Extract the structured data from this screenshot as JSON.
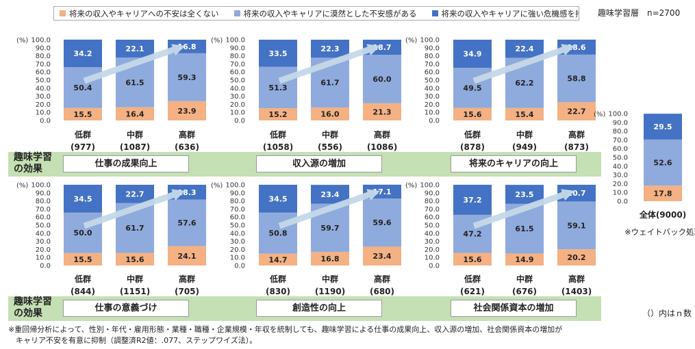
{
  "legend": {
    "items": [
      {
        "label": "将来の収入やキャリアへの不安は全くない",
        "color": "#f4b183"
      },
      {
        "label": "将来の収入やキャリアに漠然とした不安感がある",
        "color": "#8faadc"
      },
      {
        "label": "将来の収入やキャリアに強い危機感を持っている",
        "color": "#4472c4"
      }
    ]
  },
  "sample_label": "趣味学習層　n=2700",
  "band_label": [
    "趣味学習",
    "の効果"
  ],
  "n_note": "（）内はｎ数",
  "weight_note": "※ウェイトバック処理",
  "footnote": [
    "※重回帰分析によって、性別・年代・雇用形態・業種・職種・企業規模・年収を統制しても、趣味学習による仕事の成果向上、収入源の増加、社会関係資本の増加が",
    "　キャリア不安を有意に抑制（調整済R2値：.077、ステップワイズ法）。"
  ],
  "chart_data": [
    {
      "type": "bar",
      "stacked": true,
      "title": "仕事の成果向上",
      "ylabel": "(%)",
      "ylim": [
        0,
        100
      ],
      "yticks": [
        "100.0",
        "90.0",
        "80.0",
        "70.0",
        "60.0",
        "50.0",
        "40.0",
        "30.0",
        "20.0",
        "10.0",
        "0.0"
      ],
      "categories": [
        "低群",
        "中群",
        "高群"
      ],
      "n": [
        "(977)",
        "(1087)",
        "(636)"
      ],
      "series": [
        {
          "name": "将来の収入やキャリアへの不安は全くない",
          "values": [
            15.5,
            16.4,
            23.9
          ]
        },
        {
          "name": "将来の収入やキャリアに漠然とした不安感がある",
          "values": [
            50.4,
            61.5,
            59.3
          ]
        },
        {
          "name": "将来の収入やキャリアに強い危機感を持っている",
          "values": [
            34.2,
            22.1,
            16.8
          ]
        }
      ]
    },
    {
      "type": "bar",
      "stacked": true,
      "title": "収入源の増加",
      "ylabel": "(%)",
      "ylim": [
        0,
        100
      ],
      "yticks": [
        "100.0",
        "90.0",
        "80.0",
        "70.0",
        "60.0",
        "50.0",
        "40.0",
        "30.0",
        "20.0",
        "10.0",
        "0.0"
      ],
      "categories": [
        "低群",
        "中群",
        "高群"
      ],
      "n": [
        "(1058)",
        "(556)",
        "(1086)"
      ],
      "series": [
        {
          "name": "将来の収入やキャリアへの不安は全くない",
          "values": [
            15.2,
            16.0,
            21.3
          ]
        },
        {
          "name": "将来の収入やキャリアに漠然とした不安感がある",
          "values": [
            51.3,
            61.7,
            60.0
          ]
        },
        {
          "name": "将来の収入やキャリアに強い危機感を持っている",
          "values": [
            33.5,
            22.3,
            18.7
          ]
        }
      ]
    },
    {
      "type": "bar",
      "stacked": true,
      "title": "将来のキャリアの向上",
      "ylabel": "(%)",
      "ylim": [
        0,
        100
      ],
      "yticks": [
        "100.0",
        "90.0",
        "80.0",
        "70.0",
        "60.0",
        "50.0",
        "40.0",
        "30.0",
        "20.0",
        "10.0",
        "0.0"
      ],
      "categories": [
        "低群",
        "中群",
        "高群"
      ],
      "n": [
        "(878)",
        "(949)",
        "(873)"
      ],
      "series": [
        {
          "name": "将来の収入やキャリアへの不安は全くない",
          "values": [
            15.6,
            15.4,
            22.7
          ]
        },
        {
          "name": "将来の収入やキャリアに漠然とした不安感がある",
          "values": [
            49.5,
            62.2,
            58.8
          ]
        },
        {
          "name": "将来の収入やキャリアに強い危機感を持っている",
          "values": [
            34.9,
            22.4,
            18.6
          ]
        }
      ]
    },
    {
      "type": "bar",
      "stacked": true,
      "title": "仕事の意義づけ",
      "ylabel": "(%)",
      "ylim": [
        0,
        100
      ],
      "yticks": [
        "100.0",
        "90.0",
        "80.0",
        "70.0",
        "60.0",
        "50.0",
        "40.0",
        "30.0",
        "20.0",
        "10.0",
        "0.0"
      ],
      "categories": [
        "低群",
        "中群",
        "高群"
      ],
      "n": [
        "(844)",
        "(1151)",
        "(705)"
      ],
      "series": [
        {
          "name": "将来の収入やキャリアへの不安は全くない",
          "values": [
            15.5,
            15.6,
            24.1
          ]
        },
        {
          "name": "将来の収入やキャリアに漠然とした不安感がある",
          "values": [
            50.0,
            61.7,
            57.6
          ]
        },
        {
          "name": "将来の収入やキャリアに強い危機感を持っている",
          "values": [
            34.5,
            22.7,
            18.3
          ]
        }
      ]
    },
    {
      "type": "bar",
      "stacked": true,
      "title": "創造性の向上",
      "ylabel": "(%)",
      "ylim": [
        0,
        100
      ],
      "yticks": [
        "100.0",
        "90.0",
        "80.0",
        "70.0",
        "60.0",
        "50.0",
        "40.0",
        "30.0",
        "20.0",
        "10.0",
        "0.0"
      ],
      "categories": [
        "低群",
        "中群",
        "高群"
      ],
      "n": [
        "(830)",
        "(1190)",
        "(680)"
      ],
      "series": [
        {
          "name": "将来の収入やキャリアへの不安は全くない",
          "values": [
            14.7,
            16.8,
            23.4
          ]
        },
        {
          "name": "将来の収入やキャリアに漠然とした不安感がある",
          "values": [
            50.8,
            59.7,
            59.6
          ]
        },
        {
          "name": "将来の収入やキャリアに強い危機感を持っている",
          "values": [
            34.5,
            23.4,
            17.1
          ]
        }
      ]
    },
    {
      "type": "bar",
      "stacked": true,
      "title": "社会関係資本の増加",
      "ylabel": "(%)",
      "ylim": [
        0,
        100
      ],
      "yticks": [
        "100.0",
        "90.0",
        "80.0",
        "70.0",
        "60.0",
        "50.0",
        "40.0",
        "30.0",
        "20.0",
        "10.0",
        "0.0"
      ],
      "categories": [
        "低群",
        "中群",
        "高群"
      ],
      "n": [
        "(621)",
        "(676)",
        "(1403)"
      ],
      "series": [
        {
          "name": "将来の収入やキャリアへの不安は全くない",
          "values": [
            15.6,
            14.9,
            20.2
          ]
        },
        {
          "name": "将来の収入やキャリアに漠然とした不安感がある",
          "values": [
            47.2,
            61.5,
            59.1
          ]
        },
        {
          "name": "将来の収入やキャリアに強い危機感を持っている",
          "values": [
            37.2,
            23.5,
            20.7
          ]
        }
      ]
    },
    {
      "type": "bar",
      "stacked": true,
      "title": "",
      "ylabel": "(%)",
      "ylim": [
        0,
        100
      ],
      "yticks": [
        "100.0",
        "90.0",
        "80.0",
        "70.0",
        "60.0",
        "50.0",
        "40.0",
        "30.0",
        "20.0",
        "10.0",
        "0.0"
      ],
      "categories": [
        "全体(9000)"
      ],
      "n": [
        ""
      ],
      "series": [
        {
          "name": "将来の収入やキャリアへの不安は全くない",
          "values": [
            17.8
          ]
        },
        {
          "name": "将来の収入やキャリアに漠然とした不安感がある",
          "values": [
            52.6
          ]
        },
        {
          "name": "将来の収入やキャリアに強い危機感を持っている",
          "values": [
            29.5
          ]
        }
      ]
    }
  ]
}
